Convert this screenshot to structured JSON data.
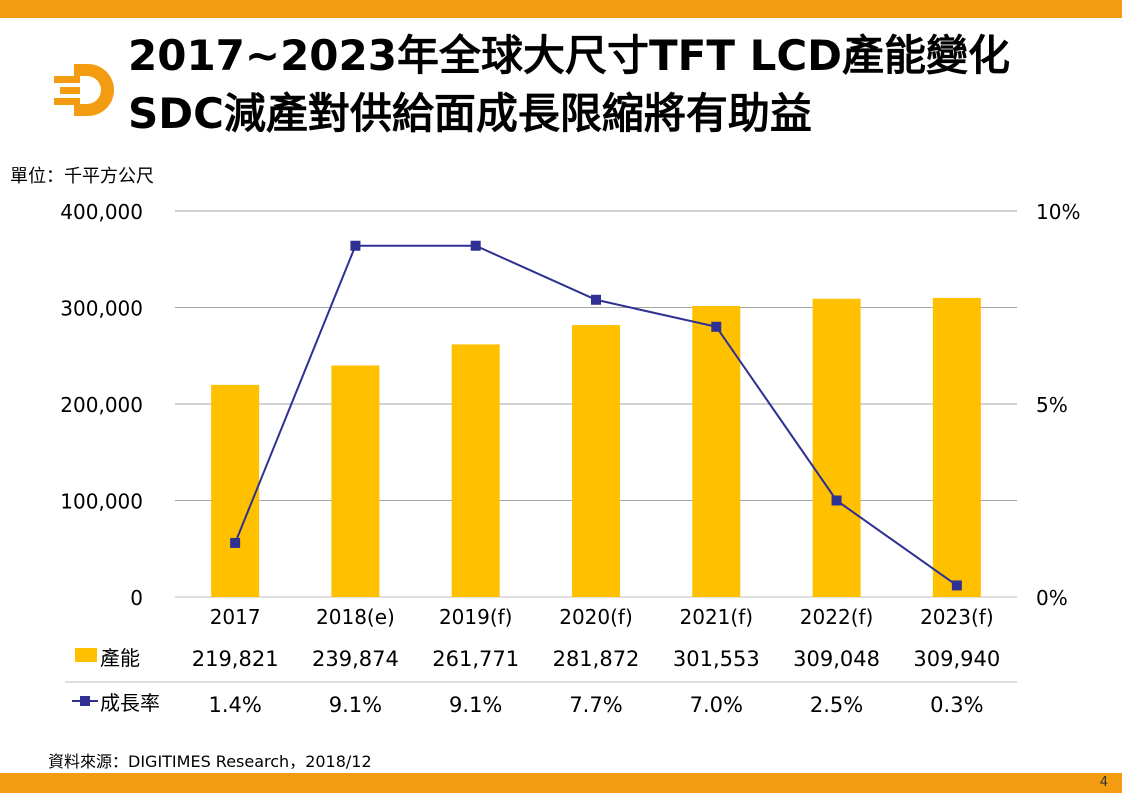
{
  "header": {
    "title_line1": "2017~2023年全球大尺寸TFT LCD產能變化",
    "title_line2": "SDC減產對供給面成長限縮將有助益",
    "logo_icon": "digitimes-d-logo-icon"
  },
  "unit_label": "單位：千平方公尺",
  "source": "資料來源：DIGITIMES Research，2018/12",
  "page_number": "4",
  "colors": {
    "accent": "#f39c12",
    "bar": "#ffc000",
    "line": "#2e3192"
  },
  "chart_data": {
    "type": "bar+line",
    "categories": [
      "2017",
      "2018(e)",
      "2019(f)",
      "2020(f)",
      "2021(f)",
      "2022(f)",
      "2023(f)"
    ],
    "series": [
      {
        "name": "產能",
        "type": "bar",
        "axis": "left",
        "values": [
          219821,
          239874,
          261771,
          281872,
          301553,
          309048,
          309940
        ],
        "labels": [
          "219,821",
          "239,874",
          "261,771",
          "281,872",
          "301,553",
          "309,048",
          "309,940"
        ]
      },
      {
        "name": "成長率",
        "type": "line",
        "axis": "right",
        "values": [
          1.4,
          9.1,
          9.1,
          7.7,
          7.0,
          2.5,
          0.3
        ],
        "labels": [
          "1.4%",
          "9.1%",
          "9.1%",
          "7.7%",
          "7.0%",
          "2.5%",
          "0.3%"
        ]
      }
    ],
    "y_left": {
      "min": 0,
      "max": 400000,
      "ticks": [
        "0",
        "100,000",
        "200,000",
        "300,000",
        "400,000"
      ]
    },
    "y_right": {
      "min": 0,
      "max": 10,
      "ticks": [
        "0%",
        "5%",
        "10%"
      ]
    },
    "grid": true,
    "legend": "bottom data table"
  }
}
